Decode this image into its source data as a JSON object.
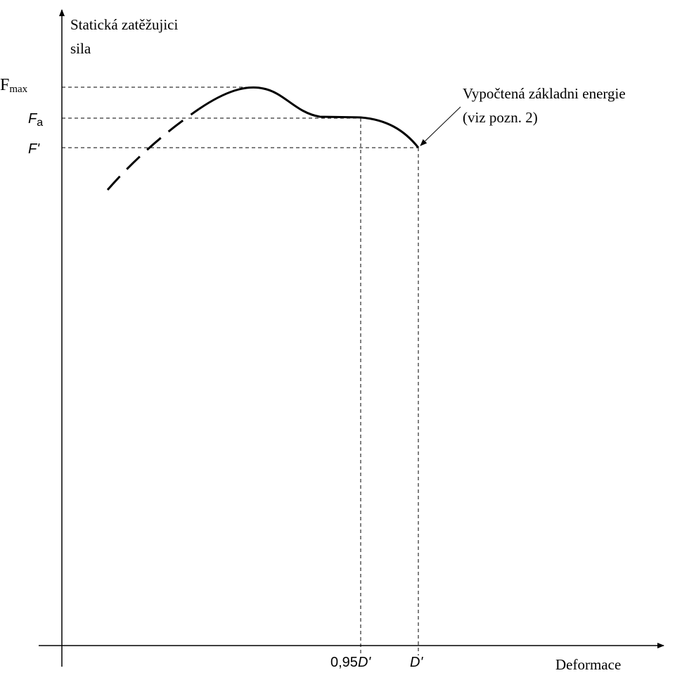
{
  "axes": {
    "y_label": [
      "Statická zatěžujici",
      "sila"
    ],
    "x_label": "Deformace"
  },
  "levels": {
    "f_max": {
      "symbol": "F",
      "sub": "max"
    },
    "f_a": {
      "symbol": "F",
      "sub": "a"
    },
    "f_prime": "F'"
  },
  "positions": {
    "d_095": {
      "number": "0,95",
      "symbol": "D'"
    },
    "d_prime": "D'"
  },
  "annotation": [
    "Vypočtená základni energie",
    "(viz pozn. 2)"
  ]
}
